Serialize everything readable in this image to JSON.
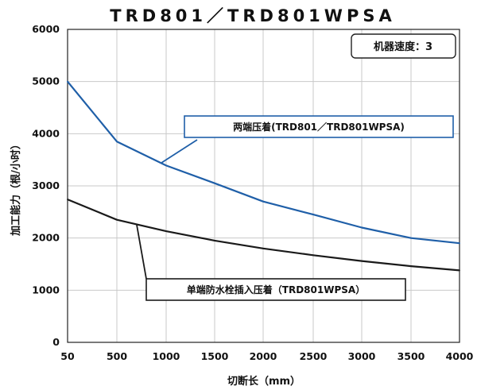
{
  "chart_data": {
    "type": "line",
    "title": "TRD801／TRD801WPSA",
    "xlabel": "切断长（mm）",
    "ylabel": "加工能力（根/小时）",
    "x_ticks": [
      "50",
      "500",
      "1000",
      "1500",
      "2000",
      "2500",
      "3000",
      "3500",
      "4000"
    ],
    "y_ticks": [
      0,
      1000,
      2000,
      3000,
      4000,
      5000,
      6000
    ],
    "xlim": [
      50,
      4000
    ],
    "ylim": [
      0,
      6000
    ],
    "grid": true,
    "note": "机器速度：3",
    "series": [
      {
        "name": "两端压着(TRD801／TRD801WPSA)",
        "color": "#1f5fa8",
        "x": [
          50,
          500,
          1000,
          1500,
          2000,
          2500,
          3000,
          3500,
          4000
        ],
        "y": [
          5000,
          3850,
          3390,
          3050,
          2700,
          2450,
          2200,
          2000,
          1900
        ]
      },
      {
        "name": "单端防水栓插入压着（TRD801WPSA）",
        "color": "#1a1a1a",
        "x": [
          50,
          500,
          1000,
          1500,
          2000,
          2500,
          3000,
          3500,
          4000
        ],
        "y": [
          2740,
          2350,
          2130,
          1950,
          1800,
          1670,
          1560,
          1460,
          1380
        ]
      }
    ]
  }
}
